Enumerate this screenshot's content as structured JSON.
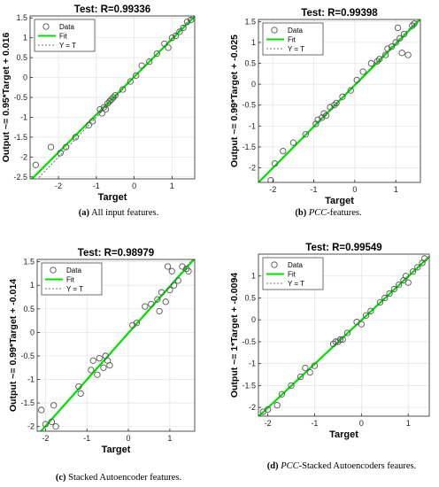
{
  "chart_data": [
    {
      "type": "scatter",
      "title": "Test: R=0.99336",
      "xlabel": "Target",
      "ylabel": "Output ~= 0.95*Target + 0.016",
      "xlim": [
        -2.75,
        1.6
      ],
      "ylim": [
        -2.55,
        1.55
      ],
      "xticks": [
        -2,
        -1,
        0,
        1
      ],
      "yticks": [
        -2.5,
        -2,
        -1.5,
        -1,
        -0.5,
        0,
        0.5,
        1,
        1.5
      ],
      "fit": {
        "slope": 0.95,
        "intercept": 0.016
      },
      "legend": {
        "position": "top-left",
        "entries": [
          "Data",
          "Fit",
          "Y = T"
        ]
      },
      "x": [
        -2.6,
        -2.2,
        -1.95,
        -1.8,
        -1.55,
        -1.2,
        -1.1,
        -0.9,
        -0.85,
        -0.8,
        -0.75,
        -0.7,
        -0.65,
        -0.6,
        -0.55,
        -0.5,
        -0.3,
        -0.1,
        0.05,
        0.2,
        0.4,
        0.6,
        0.8,
        0.9,
        1.0,
        1.1,
        1.2,
        1.3,
        1.4,
        1.5
      ],
      "y": [
        -2.2,
        -1.75,
        -1.9,
        -1.75,
        -1.5,
        -1.2,
        -1.1,
        -0.8,
        -0.9,
        -0.75,
        -0.8,
        -0.65,
        -0.6,
        -0.55,
        -0.5,
        -0.45,
        -0.3,
        -0.1,
        0.05,
        0.3,
        0.4,
        0.6,
        0.85,
        0.75,
        1.0,
        1.05,
        1.15,
        1.25,
        1.4,
        1.45
      ]
    },
    {
      "type": "scatter",
      "title": "Test: R=0.99398",
      "xlabel": "Target",
      "ylabel": "Output ~= 0.99*Target + -0.025",
      "xlim": [
        -2.35,
        1.6
      ],
      "ylim": [
        -2.35,
        1.55
      ],
      "xticks": [
        -2,
        -1,
        0,
        1
      ],
      "yticks": [
        -2,
        -1.5,
        -1,
        -0.5,
        0,
        0.5,
        1,
        1.5
      ],
      "fit": {
        "slope": 0.99,
        "intercept": -0.025
      },
      "legend": {
        "position": "top-left",
        "entries": [
          "Data",
          "Fit",
          "Y = T"
        ]
      },
      "x": [
        -2.05,
        -1.95,
        -1.75,
        -1.5,
        -1.2,
        -0.95,
        -0.9,
        -0.8,
        -0.75,
        -0.7,
        -0.6,
        -0.5,
        -0.45,
        -0.3,
        -0.1,
        0.05,
        0.2,
        0.4,
        0.55,
        0.6,
        0.75,
        0.8,
        0.9,
        1.0,
        1.05,
        1.1,
        1.15,
        1.2,
        1.3,
        1.4,
        1.45
      ],
      "y": [
        -2.3,
        -1.9,
        -1.6,
        -1.4,
        -1.2,
        -0.95,
        -0.85,
        -0.8,
        -0.7,
        -0.75,
        -0.55,
        -0.5,
        -0.45,
        -0.3,
        -0.15,
        0.1,
        0.3,
        0.5,
        0.55,
        0.6,
        0.7,
        0.85,
        0.9,
        1.0,
        1.35,
        1.1,
        0.75,
        1.2,
        0.7,
        1.4,
        1.45
      ]
    },
    {
      "type": "scatter",
      "title": "Test: R=0.98979",
      "xlabel": "Target",
      "ylabel": "Output ~= 0.99*Target + -0.014",
      "xlim": [
        -2.2,
        1.6
      ],
      "ylim": [
        -2.1,
        1.55
      ],
      "xticks": [
        -2,
        -1,
        0,
        1
      ],
      "yticks": [
        -2,
        -1.5,
        -1,
        -0.5,
        0,
        0.5,
        1,
        1.5
      ],
      "fit": {
        "slope": 0.99,
        "intercept": -0.014
      },
      "legend": {
        "position": "top-left",
        "entries": [
          "Data",
          "Fit",
          "Y = T"
        ]
      },
      "x": [
        -2.1,
        -2.0,
        -1.85,
        -1.8,
        -1.75,
        -1.2,
        -1.15,
        -0.9,
        -0.85,
        -0.75,
        -0.7,
        -0.6,
        -0.55,
        -0.5,
        -0.45,
        0.1,
        0.2,
        0.4,
        0.55,
        0.7,
        0.75,
        0.8,
        0.9,
        0.95,
        1.0,
        1.05,
        1.1,
        1.2,
        1.3,
        1.4,
        1.45
      ],
      "y": [
        -1.65,
        -1.95,
        -1.9,
        -1.55,
        -2.0,
        -1.15,
        -1.3,
        -0.8,
        -0.6,
        -0.9,
        -0.55,
        -0.75,
        -0.5,
        -0.6,
        -0.7,
        0.15,
        0.2,
        0.55,
        0.6,
        0.7,
        0.45,
        0.85,
        0.65,
        1.4,
        0.9,
        1.3,
        1.0,
        1.1,
        1.4,
        1.35,
        1.3
      ]
    },
    {
      "type": "scatter",
      "title": "Test: R=0.99549",
      "xlabel": "Target",
      "ylabel": "Output ~= 1*Target + -0.0094",
      "xlim": [
        -2.2,
        1.45
      ],
      "ylim": [
        -2.2,
        1.5
      ],
      "xticks": [
        -2,
        -1,
        0,
        1
      ],
      "yticks": [
        -2,
        -1.5,
        -1,
        -0.5,
        0,
        0.5,
        1
      ],
      "fit": {
        "slope": 1.0,
        "intercept": -0.0094
      },
      "legend": {
        "position": "top-left",
        "entries": [
          "Data",
          "Fit",
          "Y = T"
        ]
      },
      "x": [
        -2.1,
        -2.0,
        -1.8,
        -1.7,
        -1.5,
        -1.3,
        -1.2,
        -1.1,
        -1.0,
        -0.6,
        -0.55,
        -0.5,
        -0.45,
        -0.4,
        -0.3,
        -0.1,
        0.0,
        0.1,
        0.2,
        0.4,
        0.5,
        0.6,
        0.7,
        0.8,
        0.9,
        0.95,
        1.0,
        1.1,
        1.2,
        1.3,
        1.35
      ],
      "y": [
        -2.1,
        -2.05,
        -1.95,
        -1.7,
        -1.5,
        -1.3,
        -1.1,
        -1.2,
        -1.05,
        -0.55,
        -0.5,
        -0.5,
        -0.45,
        -0.45,
        -0.3,
        -0.05,
        -0.1,
        0.1,
        0.2,
        0.4,
        0.5,
        0.6,
        0.7,
        0.8,
        0.9,
        1.0,
        0.85,
        1.1,
        1.2,
        1.3,
        1.4
      ]
    }
  ],
  "legend_labels": {
    "data": "Data",
    "fit": "Fit",
    "yt": "Y = T"
  },
  "colors": {
    "fit": "#00e000",
    "marker": "#555555",
    "yt": "#444444"
  },
  "captions": [
    {
      "label": "(a)",
      "text": "All input features."
    },
    {
      "label": "(b)",
      "italic": "PCC",
      "text": "-features."
    },
    {
      "label": "(c)",
      "text": "Stacked Autoencoder features."
    },
    {
      "label": "(d)",
      "italic": "PCC",
      "text": "-Stacked Autoencoders feaures."
    }
  ]
}
